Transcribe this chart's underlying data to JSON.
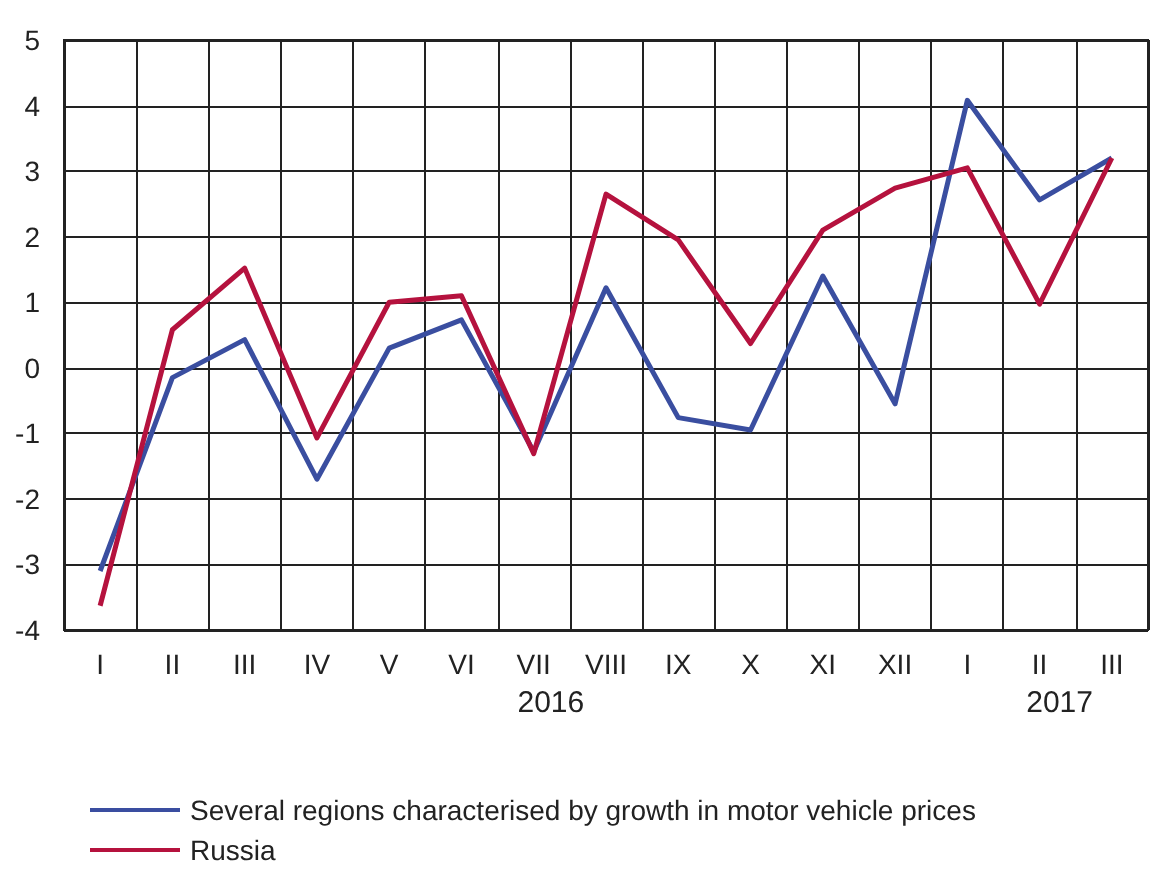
{
  "chart_data": {
    "type": "line",
    "categories": [
      "I",
      "II",
      "III",
      "IV",
      "V",
      "VI",
      "VII",
      "VIII",
      "IX",
      "X",
      "XI",
      "XII",
      "I",
      "II",
      "III"
    ],
    "series": [
      {
        "name": "Several regions characterised by growth in motor vehicle prices",
        "color": "#3a4ea0",
        "values": [
          -3.1,
          -0.15,
          0.43,
          -1.7,
          0.3,
          0.73,
          -1.28,
          1.22,
          -0.76,
          -0.95,
          1.4,
          -0.55,
          4.08,
          2.56,
          3.2
        ]
      },
      {
        "name": "Russia",
        "color": "#b5123e",
        "values": [
          -3.63,
          0.58,
          1.52,
          -1.07,
          1.0,
          1.1,
          -1.31,
          2.65,
          1.95,
          0.37,
          2.1,
          2.74,
          3.05,
          0.97,
          3.2
        ]
      }
    ],
    "annotations": [
      "2016",
      "2017"
    ],
    "ylim": [
      -4,
      5
    ],
    "yticks": [
      -4,
      -3,
      -2,
      -1,
      0,
      1,
      2,
      3,
      4,
      5
    ],
    "grid": true,
    "legend": "bottom left",
    "marker": "none",
    "line_style": "solid"
  }
}
